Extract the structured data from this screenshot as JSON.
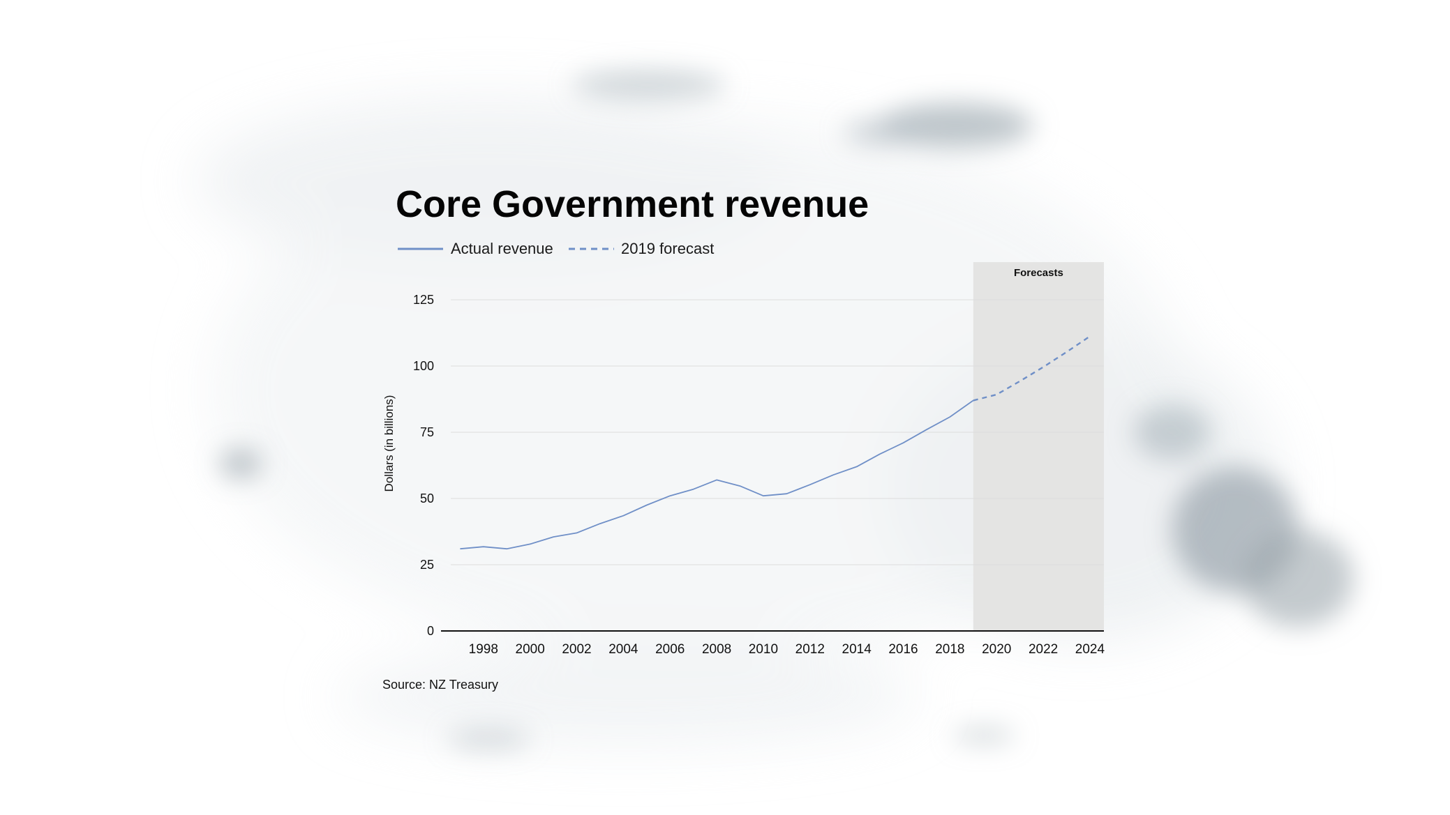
{
  "colors": {
    "line": "#6f8fc7",
    "forecast_band": "#e4e4e3",
    "gridline": "#dddddd",
    "axis": "#111111",
    "wash": "#9aa5ad"
  },
  "chart_data": {
    "type": "line",
    "title": "Core Government revenue",
    "xlabel": "",
    "ylabel": "Dollars (in billions)",
    "source": "Source: NZ Treasury",
    "xlim": [
      1996.6,
      2024.6
    ],
    "ylim": [
      0,
      125
    ],
    "y_ticks": [
      0,
      25,
      50,
      75,
      100,
      125
    ],
    "x_ticks": [
      1998,
      2000,
      2002,
      2004,
      2006,
      2008,
      2010,
      2012,
      2014,
      2016,
      2018,
      2020,
      2022,
      2024
    ],
    "grid": true,
    "legend_position": "top-left",
    "forecast_band": {
      "label": "Forecasts",
      "x_start": 2019,
      "x_end": 2024.6
    },
    "series": [
      {
        "name": "Actual revenue",
        "style": "solid",
        "x": [
          1997,
          1998,
          1999,
          2000,
          2001,
          2002,
          2003,
          2004,
          2005,
          2006,
          2007,
          2008,
          2009,
          2010,
          2011,
          2012,
          2013,
          2014,
          2015,
          2016,
          2017,
          2018,
          2019
        ],
        "y": [
          31,
          31.8,
          31,
          32.8,
          35.5,
          37,
          40.5,
          43.5,
          47.5,
          51,
          53.5,
          57,
          54.7,
          51,
          51.8,
          55.2,
          58.9,
          62,
          66.8,
          71,
          76,
          80.8,
          87
        ]
      },
      {
        "name": "2019 forecast",
        "style": "dashed",
        "x": [
          2019,
          2020,
          2021,
          2022,
          2023,
          2024
        ],
        "y": [
          87,
          89.2,
          94.3,
          99.6,
          105.3,
          111.2
        ]
      }
    ]
  }
}
